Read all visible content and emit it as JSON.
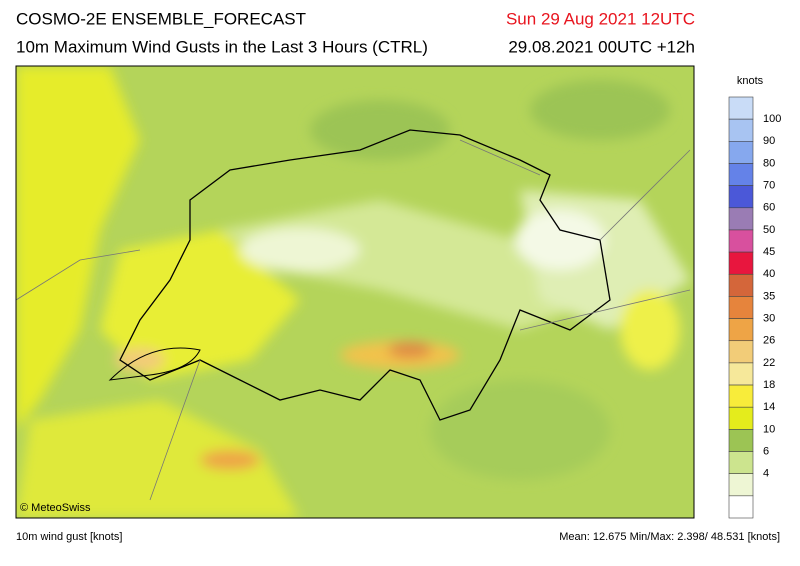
{
  "header": {
    "title": "COSMO-2E ENSEMBLE_FORECAST",
    "subtitle": "10m Maximum Wind Gusts in the Last 3 Hours (CTRL)",
    "valid_time": "Sun 29 Aug 2021 12UTC",
    "run_time": "29.08.2021 00UTC +12h"
  },
  "map": {
    "credit": "© MeteoSwiss"
  },
  "legend": {
    "unit": "knots",
    "labels": [
      "100",
      "90",
      "80",
      "70",
      "60",
      "50",
      "45",
      "40",
      "35",
      "30",
      "26",
      "22",
      "18",
      "14",
      "10",
      "6",
      "4"
    ],
    "colors": [
      "#c9dcf7",
      "#a8c4f2",
      "#86a8ee",
      "#6482e8",
      "#4b58d8",
      "#9a7cb4",
      "#d8509e",
      "#e8163e",
      "#d4663a",
      "#e6843c",
      "#eea446",
      "#f2cc78",
      "#f6e89a",
      "#f8ec3a",
      "#e4ec1c",
      "#9cc454",
      "#cce48e",
      "#eef6d4",
      "#ffffff"
    ]
  },
  "footer": {
    "variable": "10m wind gust [knots]",
    "stats": "Mean:  12.675 Min/Max:   2.398/ 48.531 [knots]"
  }
}
